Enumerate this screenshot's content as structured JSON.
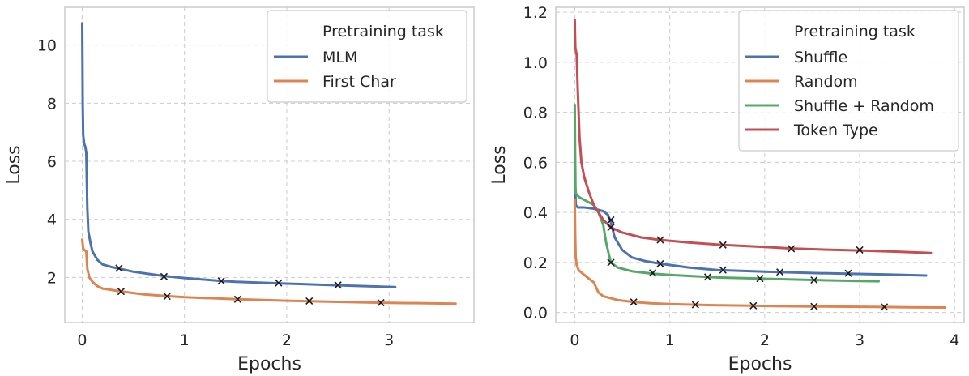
{
  "chart_data": [
    {
      "type": "line",
      "xlabel": "Epochs",
      "ylabel": "Loss",
      "xlim": [
        -0.17,
        3.83
      ],
      "ylim": [
        0.45,
        11.3
      ],
      "xticks": [
        0,
        1,
        2,
        3
      ],
      "xtick_labels": [
        "0",
        "1",
        "2",
        "3"
      ],
      "yticks": [
        2,
        4,
        6,
        8,
        10
      ],
      "ytick_labels": [
        "2",
        "4",
        "6",
        "8",
        "10"
      ],
      "grid": true,
      "legend": {
        "title": "Pretraining task",
        "placement": "top-right"
      },
      "series": [
        {
          "name": "MLM",
          "color": "#4c72b0",
          "x": [
            0.0,
            0.005,
            0.01,
            0.02,
            0.03,
            0.04,
            0.05,
            0.06,
            0.08,
            0.1,
            0.15,
            0.2,
            0.3,
            0.37,
            0.5,
            0.8,
            1.0,
            1.36,
            1.5,
            1.92,
            2.0,
            2.5,
            3.06
          ],
          "y": [
            10.75,
            8.0,
            6.9,
            6.6,
            6.5,
            6.3,
            4.4,
            3.6,
            3.2,
            2.9,
            2.6,
            2.45,
            2.35,
            2.3,
            2.2,
            2.05,
            1.98,
            1.88,
            1.85,
            1.8,
            1.79,
            1.73,
            1.67
          ],
          "markers_x": [
            0.36,
            0.8,
            1.36,
            1.92,
            2.5
          ],
          "markers_y": [
            2.32,
            2.03,
            1.88,
            1.81,
            1.74
          ]
        },
        {
          "name": "First Char",
          "color": "#dd8452",
          "x": [
            0.0,
            0.01,
            0.02,
            0.04,
            0.05,
            0.07,
            0.1,
            0.15,
            0.2,
            0.38,
            0.6,
            0.83,
            1.0,
            1.52,
            2.0,
            2.22,
            2.92,
            3.65
          ],
          "y": [
            3.3,
            3.0,
            2.95,
            2.9,
            2.3,
            2.0,
            1.85,
            1.7,
            1.62,
            1.52,
            1.42,
            1.36,
            1.32,
            1.25,
            1.2,
            1.18,
            1.13,
            1.1
          ],
          "markers_x": [
            0.38,
            0.83,
            1.52,
            2.22,
            2.92
          ],
          "markers_y": [
            1.52,
            1.35,
            1.25,
            1.19,
            1.13
          ]
        }
      ]
    },
    {
      "type": "line",
      "xlabel": "Epochs",
      "ylabel": "Loss",
      "xlim": [
        -0.2,
        4.1
      ],
      "ylim": [
        -0.04,
        1.22
      ],
      "xticks": [
        0,
        1,
        2,
        3,
        4
      ],
      "xtick_labels": [
        "0",
        "1",
        "2",
        "3",
        "4"
      ],
      "yticks": [
        0.0,
        0.2,
        0.4,
        0.6,
        0.8,
        1.0,
        1.2
      ],
      "ytick_labels": [
        "0.0",
        "0.2",
        "0.4",
        "0.6",
        "0.8",
        "1.0",
        "1.2"
      ],
      "grid": true,
      "legend": {
        "title": "Pretraining task",
        "placement": "top-right"
      },
      "series": [
        {
          "name": "Shuffle",
          "color": "#4c72b0",
          "x": [
            0.0,
            0.005,
            0.01,
            0.03,
            0.05,
            0.1,
            0.2,
            0.3,
            0.35,
            0.38,
            0.42,
            0.5,
            0.6,
            0.75,
            0.9,
            1.2,
            1.5,
            2.0,
            2.5,
            2.88,
            3.3,
            3.7
          ],
          "y": [
            0.58,
            0.5,
            0.43,
            0.42,
            0.42,
            0.42,
            0.415,
            0.405,
            0.39,
            0.36,
            0.3,
            0.25,
            0.22,
            0.205,
            0.195,
            0.18,
            0.17,
            0.163,
            0.158,
            0.155,
            0.152,
            0.148
          ],
          "markers_x": [
            0.38,
            0.9,
            1.56,
            2.16,
            2.88
          ],
          "markers_y": [
            0.37,
            0.195,
            0.17,
            0.162,
            0.157
          ]
        },
        {
          "name": "Random",
          "color": "#dd8452",
          "x": [
            0.0,
            0.005,
            0.01,
            0.02,
            0.04,
            0.07,
            0.1,
            0.15,
            0.2,
            0.25,
            0.3,
            0.45,
            0.62,
            0.8,
            1.0,
            1.27,
            1.5,
            1.88,
            2.0,
            2.52,
            3.0,
            3.26,
            3.5,
            3.9
          ],
          "y": [
            0.45,
            0.3,
            0.22,
            0.19,
            0.17,
            0.16,
            0.15,
            0.135,
            0.12,
            0.08,
            0.065,
            0.05,
            0.042,
            0.037,
            0.034,
            0.031,
            0.029,
            0.027,
            0.026,
            0.024,
            0.023,
            0.022,
            0.021,
            0.02
          ],
          "markers_x": [
            0.62,
            1.27,
            1.88,
            2.52,
            3.26
          ],
          "markers_y": [
            0.042,
            0.031,
            0.027,
            0.024,
            0.022
          ]
        },
        {
          "name": "Shuffle + Random",
          "color": "#55a868",
          "x": [
            0.0,
            0.003,
            0.007,
            0.01,
            0.02,
            0.05,
            0.1,
            0.15,
            0.2,
            0.25,
            0.3,
            0.33,
            0.36,
            0.38,
            0.45,
            0.6,
            0.82,
            1.0,
            1.4,
            1.5,
            1.95,
            2.0,
            2.5,
            2.6,
            3.0,
            3.2
          ],
          "y": [
            0.83,
            0.65,
            0.5,
            0.48,
            0.47,
            0.46,
            0.45,
            0.44,
            0.43,
            0.4,
            0.35,
            0.28,
            0.23,
            0.2,
            0.18,
            0.165,
            0.155,
            0.15,
            0.142,
            0.14,
            0.136,
            0.135,
            0.13,
            0.129,
            0.126,
            0.125
          ],
          "markers_x": [
            0.38,
            0.82,
            1.4,
            1.95,
            2.52
          ],
          "markers_y": [
            0.2,
            0.158,
            0.142,
            0.136,
            0.13
          ]
        },
        {
          "name": "Token Type",
          "color": "#c44e52",
          "x": [
            0.0,
            0.003,
            0.006,
            0.01,
            0.015,
            0.02,
            0.03,
            0.05,
            0.07,
            0.1,
            0.15,
            0.2,
            0.3,
            0.38,
            0.5,
            0.7,
            0.9,
            1.2,
            1.56,
            2.0,
            2.28,
            2.6,
            3.0,
            3.4,
            3.75
          ],
          "y": [
            1.17,
            1.1,
            1.06,
            1.05,
            1.04,
            1.03,
            0.9,
            0.7,
            0.6,
            0.54,
            0.48,
            0.43,
            0.37,
            0.34,
            0.32,
            0.3,
            0.29,
            0.28,
            0.27,
            0.262,
            0.256,
            0.252,
            0.248,
            0.243,
            0.238
          ],
          "markers_x": [
            0.38,
            0.9,
            1.56,
            2.28,
            3.0
          ],
          "markers_y": [
            0.34,
            0.29,
            0.27,
            0.255,
            0.25
          ]
        }
      ]
    }
  ]
}
